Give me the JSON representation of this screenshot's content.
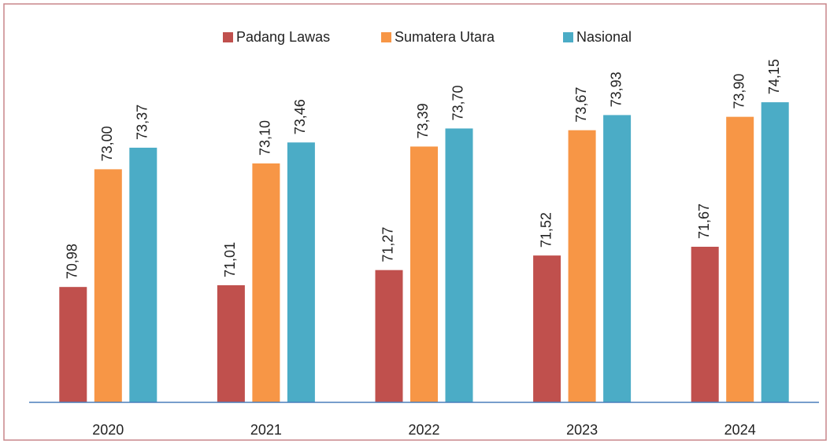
{
  "chart_data": {
    "type": "bar",
    "categories": [
      "2020",
      "2021",
      "2022",
      "2023",
      "2024"
    ],
    "series": [
      {
        "name": "Padang Lawas",
        "color": "#c0504d",
        "values": [
          70.98,
          71.01,
          71.27,
          71.52,
          71.67
        ],
        "value_labels": [
          "70,98",
          "71,01",
          "71,27",
          "71,52",
          "71,67"
        ]
      },
      {
        "name": "Sumatera Utara",
        "color": "#f79646",
        "values": [
          73.0,
          73.1,
          73.39,
          73.67,
          73.9
        ],
        "value_labels": [
          "73,00",
          "73,10",
          "73,39",
          "73,67",
          "73,90"
        ]
      },
      {
        "name": "Nasional",
        "color": "#4bacc6",
        "values": [
          73.37,
          73.46,
          73.7,
          73.93,
          74.15
        ],
        "value_labels": [
          "73,37",
          "73,46",
          "73,70",
          "73,93",
          "74,15"
        ]
      }
    ],
    "ylim": [
      69,
      75.5
    ],
    "legend": "top"
  }
}
